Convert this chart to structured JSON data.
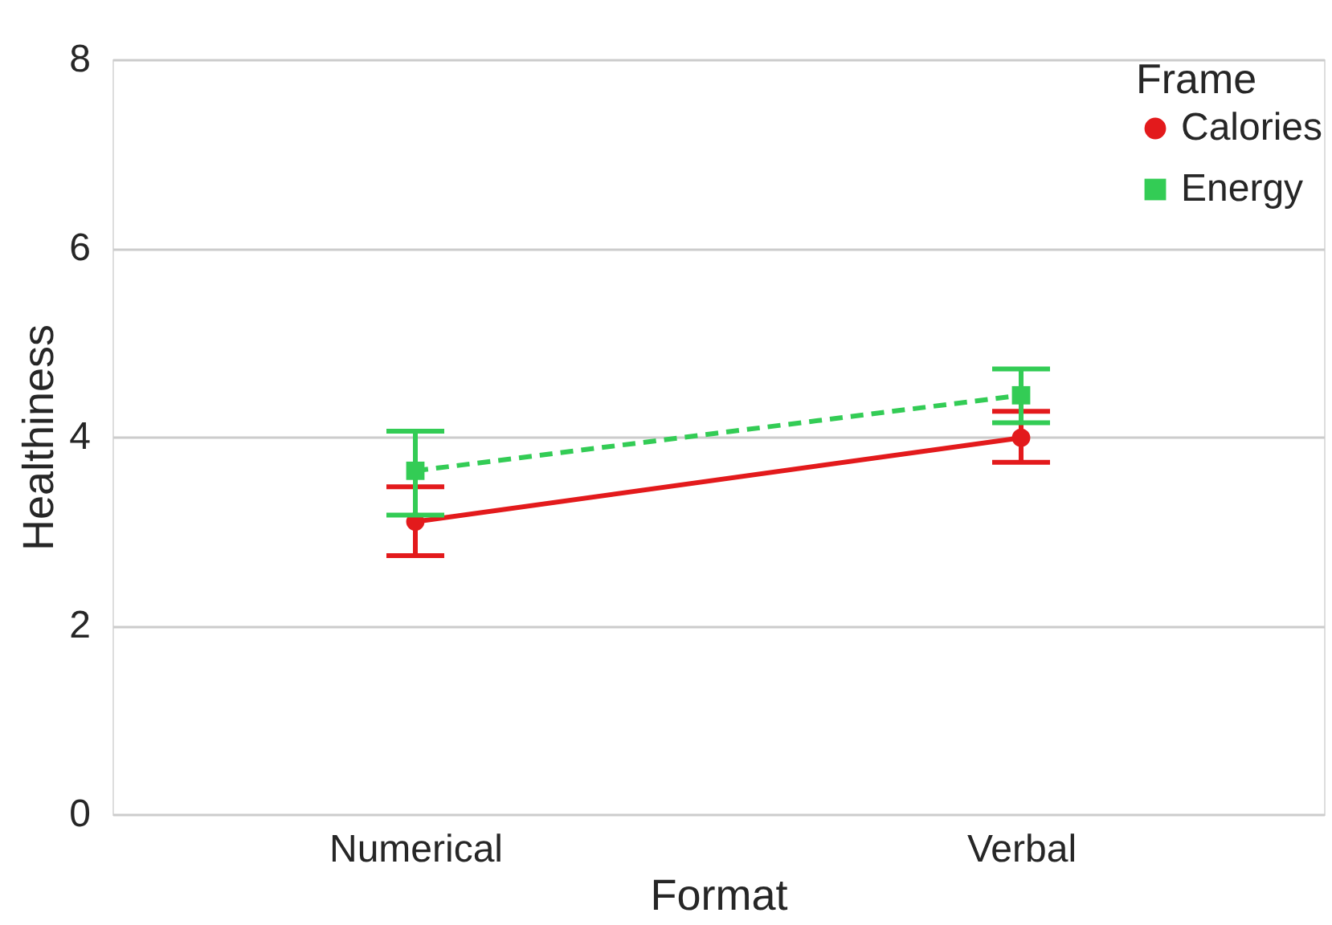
{
  "chart_data": {
    "type": "line",
    "xlabel": "Format",
    "ylabel": "Healthiness",
    "legend_title": "Frame",
    "categories": [
      "Numerical",
      "Verbal"
    ],
    "series": [
      {
        "name": "Calories",
        "color": "#e31a1c",
        "values": [
          3.1,
          3.99
        ],
        "errors": [
          [
            2.74,
            3.47
          ],
          [
            3.73,
            4.27
          ]
        ],
        "marker": "circle",
        "line_style": "solid"
      },
      {
        "name": "Energy",
        "color": "#33cc55",
        "values": [
          3.64,
          4.44
        ],
        "errors": [
          [
            3.17,
            4.06
          ],
          [
            4.15,
            4.72
          ]
        ],
        "marker": "square",
        "line_style": "dashed"
      }
    ],
    "ylim": [
      0,
      8
    ],
    "yticks": [
      0,
      2,
      4,
      6,
      8
    ],
    "grid": "y",
    "legend": "top right"
  }
}
